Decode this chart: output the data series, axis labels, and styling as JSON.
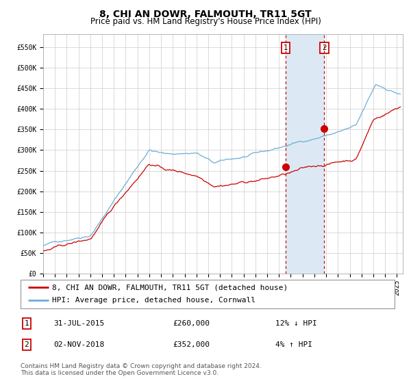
{
  "title": "8, CHI AN DOWR, FALMOUTH, TR11 5GT",
  "subtitle": "Price paid vs. HM Land Registry's House Price Index (HPI)",
  "xlim_start": 1995.0,
  "xlim_end": 2025.5,
  "ylim_min": 0,
  "ylim_max": 580000,
  "yticks": [
    0,
    50000,
    100000,
    150000,
    200000,
    250000,
    300000,
    350000,
    400000,
    450000,
    500000,
    550000
  ],
  "ytick_labels": [
    "£0",
    "£50K",
    "£100K",
    "£150K",
    "£200K",
    "£250K",
    "£300K",
    "£350K",
    "£400K",
    "£450K",
    "£500K",
    "£550K"
  ],
  "hpi_color": "#6baed6",
  "price_color": "#cc0000",
  "marker_color": "#cc0000",
  "vline_color": "#cc0000",
  "shade_color": "#dce9f5",
  "purchase1_year": 2015.58,
  "purchase1_price": 260000,
  "purchase1_label": "1",
  "purchase2_year": 2018.84,
  "purchase2_price": 352000,
  "purchase2_label": "2",
  "legend_line1": "8, CHI AN DOWR, FALMOUTH, TR11 5GT (detached house)",
  "legend_line2": "HPI: Average price, detached house, Cornwall",
  "table_row1_num": "1",
  "table_row1_date": "31-JUL-2015",
  "table_row1_price": "£260,000",
  "table_row1_hpi": "12% ↓ HPI",
  "table_row2_num": "2",
  "table_row2_date": "02-NOV-2018",
  "table_row2_price": "£352,000",
  "table_row2_hpi": "4% ↑ HPI",
  "footnote": "Contains HM Land Registry data © Crown copyright and database right 2024.\nThis data is licensed under the Open Government Licence v3.0.",
  "background_color": "#ffffff",
  "grid_color": "#cccccc",
  "title_fontsize": 10,
  "subtitle_fontsize": 8.5,
  "tick_fontsize": 7,
  "legend_fontsize": 8,
  "table_fontsize": 8,
  "footnote_fontsize": 6.5
}
